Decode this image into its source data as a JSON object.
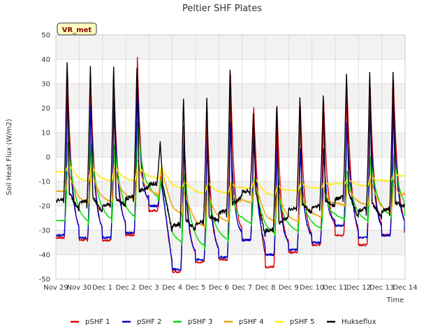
{
  "chart_data": {
    "type": "line",
    "title": "Peltier SHF Plates",
    "xlabel": "Time",
    "ylabel": "Soil Heat Flux (W/m2)",
    "xlim": [
      0,
      15
    ],
    "ylim": [
      -50,
      50
    ],
    "yticks": [
      -50,
      -40,
      -30,
      -20,
      -10,
      0,
      10,
      20,
      30,
      40,
      50
    ],
    "xticks": [
      {
        "v": 0,
        "label": "Nov 29"
      },
      {
        "v": 1,
        "label": "Nov 30"
      },
      {
        "v": 2,
        "label": "Dec 1"
      },
      {
        "v": 3,
        "label": "Dec 2"
      },
      {
        "v": 4,
        "label": "Dec 3"
      },
      {
        "v": 5,
        "label": "Dec 4"
      },
      {
        "v": 6,
        "label": "Dec 5"
      },
      {
        "v": 7,
        "label": "Dec 6"
      },
      {
        "v": 8,
        "label": "Dec 7"
      },
      {
        "v": 9,
        "label": "Dec 8"
      },
      {
        "v": 10,
        "label": "Dec 9"
      },
      {
        "v": 11,
        "label": "Dec 10"
      },
      {
        "v": 12,
        "label": "Dec 11"
      },
      {
        "v": 13,
        "label": "Dec 12"
      },
      {
        "v": 14,
        "label": "Dec 13"
      },
      {
        "v": 15,
        "label": "Dec 14"
      }
    ],
    "grid": true,
    "badge": "VR_met",
    "legend_position": "bottom",
    "series": [
      {
        "name": "pSHF 1",
        "color": "#dd0000",
        "days": [
          [
            -33,
            34
          ],
          [
            -34,
            29
          ],
          [
            -34,
            30
          ],
          [
            -32,
            41
          ],
          [
            -22,
            -8
          ],
          [
            -47,
            13
          ],
          [
            -43,
            16
          ],
          [
            -42,
            34
          ],
          [
            -34,
            20
          ],
          [
            -45,
            21
          ],
          [
            -39,
            21
          ],
          [
            -36,
            24
          ],
          [
            -32,
            29
          ],
          [
            -36,
            29
          ],
          [
            -32,
            32
          ]
        ],
        "end": -31
      },
      {
        "name": "pSHF 2",
        "color": "#0000cc",
        "days": [
          [
            -32,
            25
          ],
          [
            -33,
            21
          ],
          [
            -33,
            23
          ],
          [
            -31,
            32
          ],
          [
            -20,
            -10
          ],
          [
            -46,
            6
          ],
          [
            -42,
            6
          ],
          [
            -41,
            14
          ],
          [
            -34,
            8
          ],
          [
            -40,
            3
          ],
          [
            -38,
            3
          ],
          [
            -35,
            3
          ],
          [
            -28,
            14
          ],
          [
            -33,
            18
          ],
          [
            -32,
            21
          ]
        ],
        "end": -30
      },
      {
        "name": "pSHF 3",
        "color": "#00dd00",
        "days": [
          [
            -26,
            7
          ],
          [
            -28,
            6
          ],
          [
            -27,
            6
          ],
          [
            -26,
            15
          ],
          [
            -18,
            -9
          ],
          [
            -36,
            -6
          ],
          [
            -38,
            -10
          ],
          [
            -35,
            -10
          ],
          [
            -28,
            -8
          ],
          [
            -32,
            -12
          ],
          [
            -31,
            -12
          ],
          [
            -30,
            -12
          ],
          [
            -26,
            -5
          ],
          [
            -27,
            1
          ],
          [
            -25,
            2
          ]
        ],
        "end": -24
      },
      {
        "name": "pSHF 4",
        "color": "#f0a000",
        "days": [
          [
            -14,
            -6
          ],
          [
            -19,
            -4
          ],
          [
            -19,
            -4
          ],
          [
            -18,
            -1
          ],
          [
            -16,
            -4
          ],
          [
            -24,
            -14
          ],
          [
            -29,
            -12
          ],
          [
            -27,
            -11
          ],
          [
            -19,
            -10
          ],
          [
            -27,
            -12
          ],
          [
            -27,
            -13
          ],
          [
            -25,
            -12
          ],
          [
            -20,
            -11
          ],
          [
            -20,
            -9
          ],
          [
            -23,
            -9
          ]
        ],
        "end": -16
      },
      {
        "name": "pSHF 5",
        "color": "#ffee00",
        "days": [
          [
            -6,
            -3
          ],
          [
            -10,
            -3
          ],
          [
            -10,
            -3
          ],
          [
            -10,
            -2
          ],
          [
            -9,
            -4
          ],
          [
            -13,
            -10
          ],
          [
            -15,
            -10
          ],
          [
            -15,
            -10
          ],
          [
            -13,
            -8
          ],
          [
            -16,
            -11
          ],
          [
            -14,
            -10
          ],
          [
            -13,
            -10
          ],
          [
            -11,
            -9
          ],
          [
            -12,
            -7
          ],
          [
            -10,
            -6
          ]
        ],
        "end": -8
      },
      {
        "name": "Hukseflux",
        "color": "#000000",
        "days": [
          [
            -21,
            40
          ],
          [
            -22,
            38
          ],
          [
            -23,
            38
          ],
          [
            -20,
            38
          ],
          [
            -12,
            6
          ],
          [
            -31,
            25
          ],
          [
            -30,
            25
          ],
          [
            -26,
            36
          ],
          [
            -16,
            18
          ],
          [
            -33,
            21
          ],
          [
            -24,
            25
          ],
          [
            -23,
            25
          ],
          [
            -20,
            35
          ],
          [
            -25,
            35
          ],
          [
            -25,
            35
          ]
        ],
        "end": -20
      }
    ]
  }
}
